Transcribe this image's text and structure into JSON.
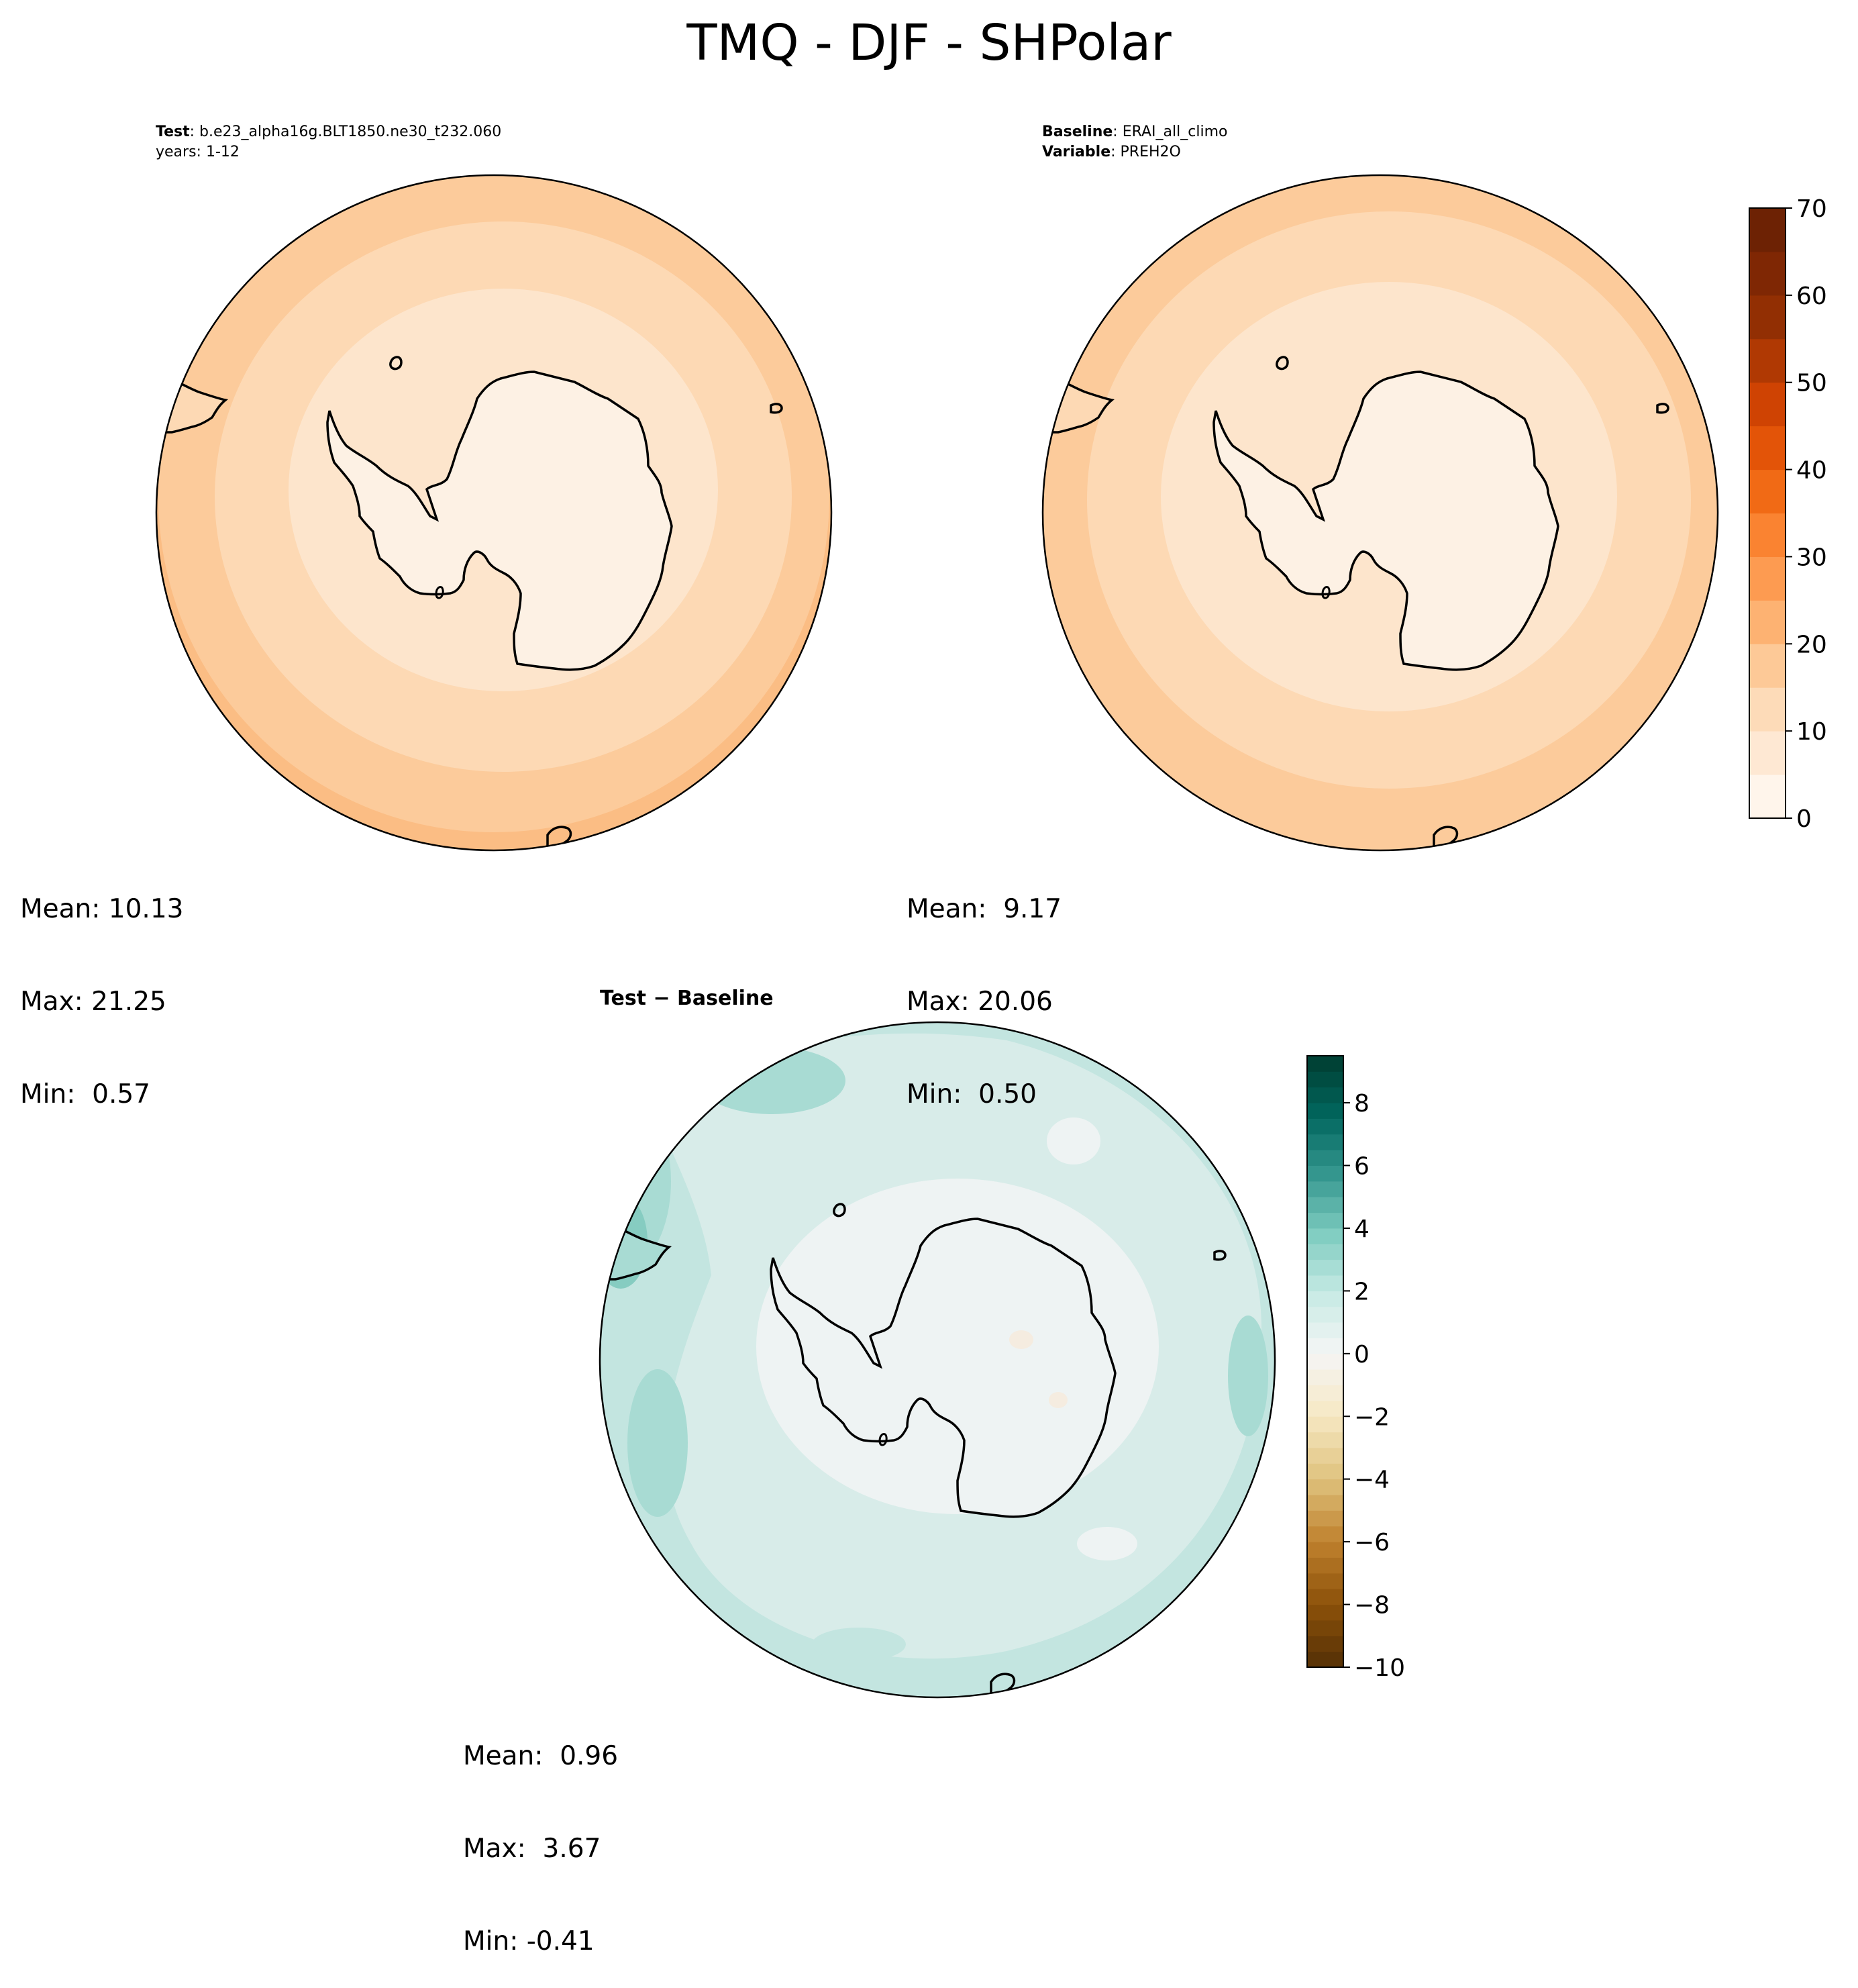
{
  "figure": {
    "title": "TMQ - DJF - SHPolar"
  },
  "panels": {
    "test": {
      "label_key": "Test",
      "label_value": "b.e23_alpha16g.BLT1850.ne30_t232.060",
      "years": "years: 1-12",
      "stats": {
        "mean": "Mean: 10.13",
        "max": "Max: 21.25",
        "min": "Min:  0.57"
      }
    },
    "baseline": {
      "label_key": "Baseline",
      "label_value": "ERAI_all_climo",
      "variable_key": "Variable",
      "variable_value": "PREH2O",
      "stats": {
        "mean": "Mean:  9.17",
        "max": "Max: 20.06",
        "min": "Min:  0.50"
      }
    },
    "diff": {
      "title": "Test − Baseline",
      "stats": {
        "mean": "Mean:  0.96",
        "max": "Max:  3.67",
        "min": "Min: -0.41"
      }
    }
  },
  "colorbars": {
    "absolute": {
      "min": 0,
      "max": 70,
      "levels": 14,
      "ticks": [
        "0",
        "10",
        "20",
        "30",
        "40",
        "50",
        "60",
        "70"
      ],
      "colormap": "Oranges",
      "colors": [
        "#fff5eb",
        "#fee8d3",
        "#fddbb8",
        "#fdc997",
        "#fdb272",
        "#fd9b51",
        "#fa8331",
        "#f16a15",
        "#e35408",
        "#cf4303",
        "#b03903",
        "#922f03",
        "#7f2704",
        "#6d2204"
      ]
    },
    "difference": {
      "min": -10,
      "max": 9.5,
      "step": 0.5,
      "ticks": [
        "−10",
        "−8",
        "−6",
        "−4",
        "−2",
        "0",
        "2",
        "4",
        "6",
        "8"
      ],
      "colormap": "BrBG"
    }
  },
  "map_colors": {
    "test_levels": [
      "#fdf1e4",
      "#fde5cc",
      "#fdd9b4",
      "#fccb9b",
      "#fbbd84"
    ],
    "baseline_levels": [
      "#fdf1e4",
      "#fde5cc",
      "#fdd9b4",
      "#fccb9b"
    ],
    "diff_levels": [
      "#eef3f3",
      "#d8ece9",
      "#c3e5e0",
      "#a8dbd3",
      "#86ccc1"
    ]
  }
}
